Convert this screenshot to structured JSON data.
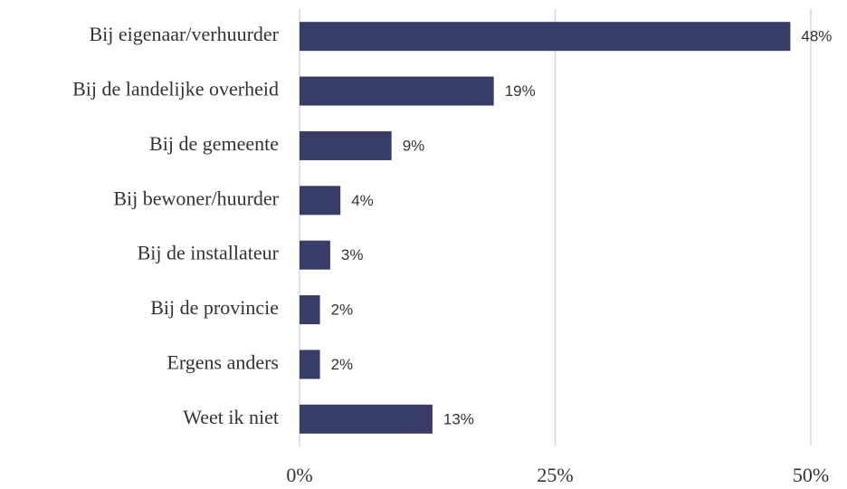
{
  "chart_data": {
    "type": "bar",
    "orientation": "horizontal",
    "categories": [
      "Bij eigenaar/verhuurder",
      "Bij de landelijke overheid",
      "Bij de gemeente",
      "Bij bewoner/huurder",
      "Bij de installateur",
      "Bij de provincie",
      "Ergens anders",
      "Weet ik niet"
    ],
    "values": [
      48,
      19,
      9,
      4,
      3,
      2,
      2,
      13
    ],
    "value_labels": [
      "48%",
      "19%",
      "9%",
      "4%",
      "3%",
      "2%",
      "2%",
      "13%"
    ],
    "color": "#373d66",
    "xlim": [
      0,
      50
    ],
    "xticks": [
      {
        "value": 0,
        "label": "0%"
      },
      {
        "value": 25,
        "label": "25%"
      },
      {
        "value": 50,
        "label": "50%"
      }
    ],
    "grid": true
  }
}
